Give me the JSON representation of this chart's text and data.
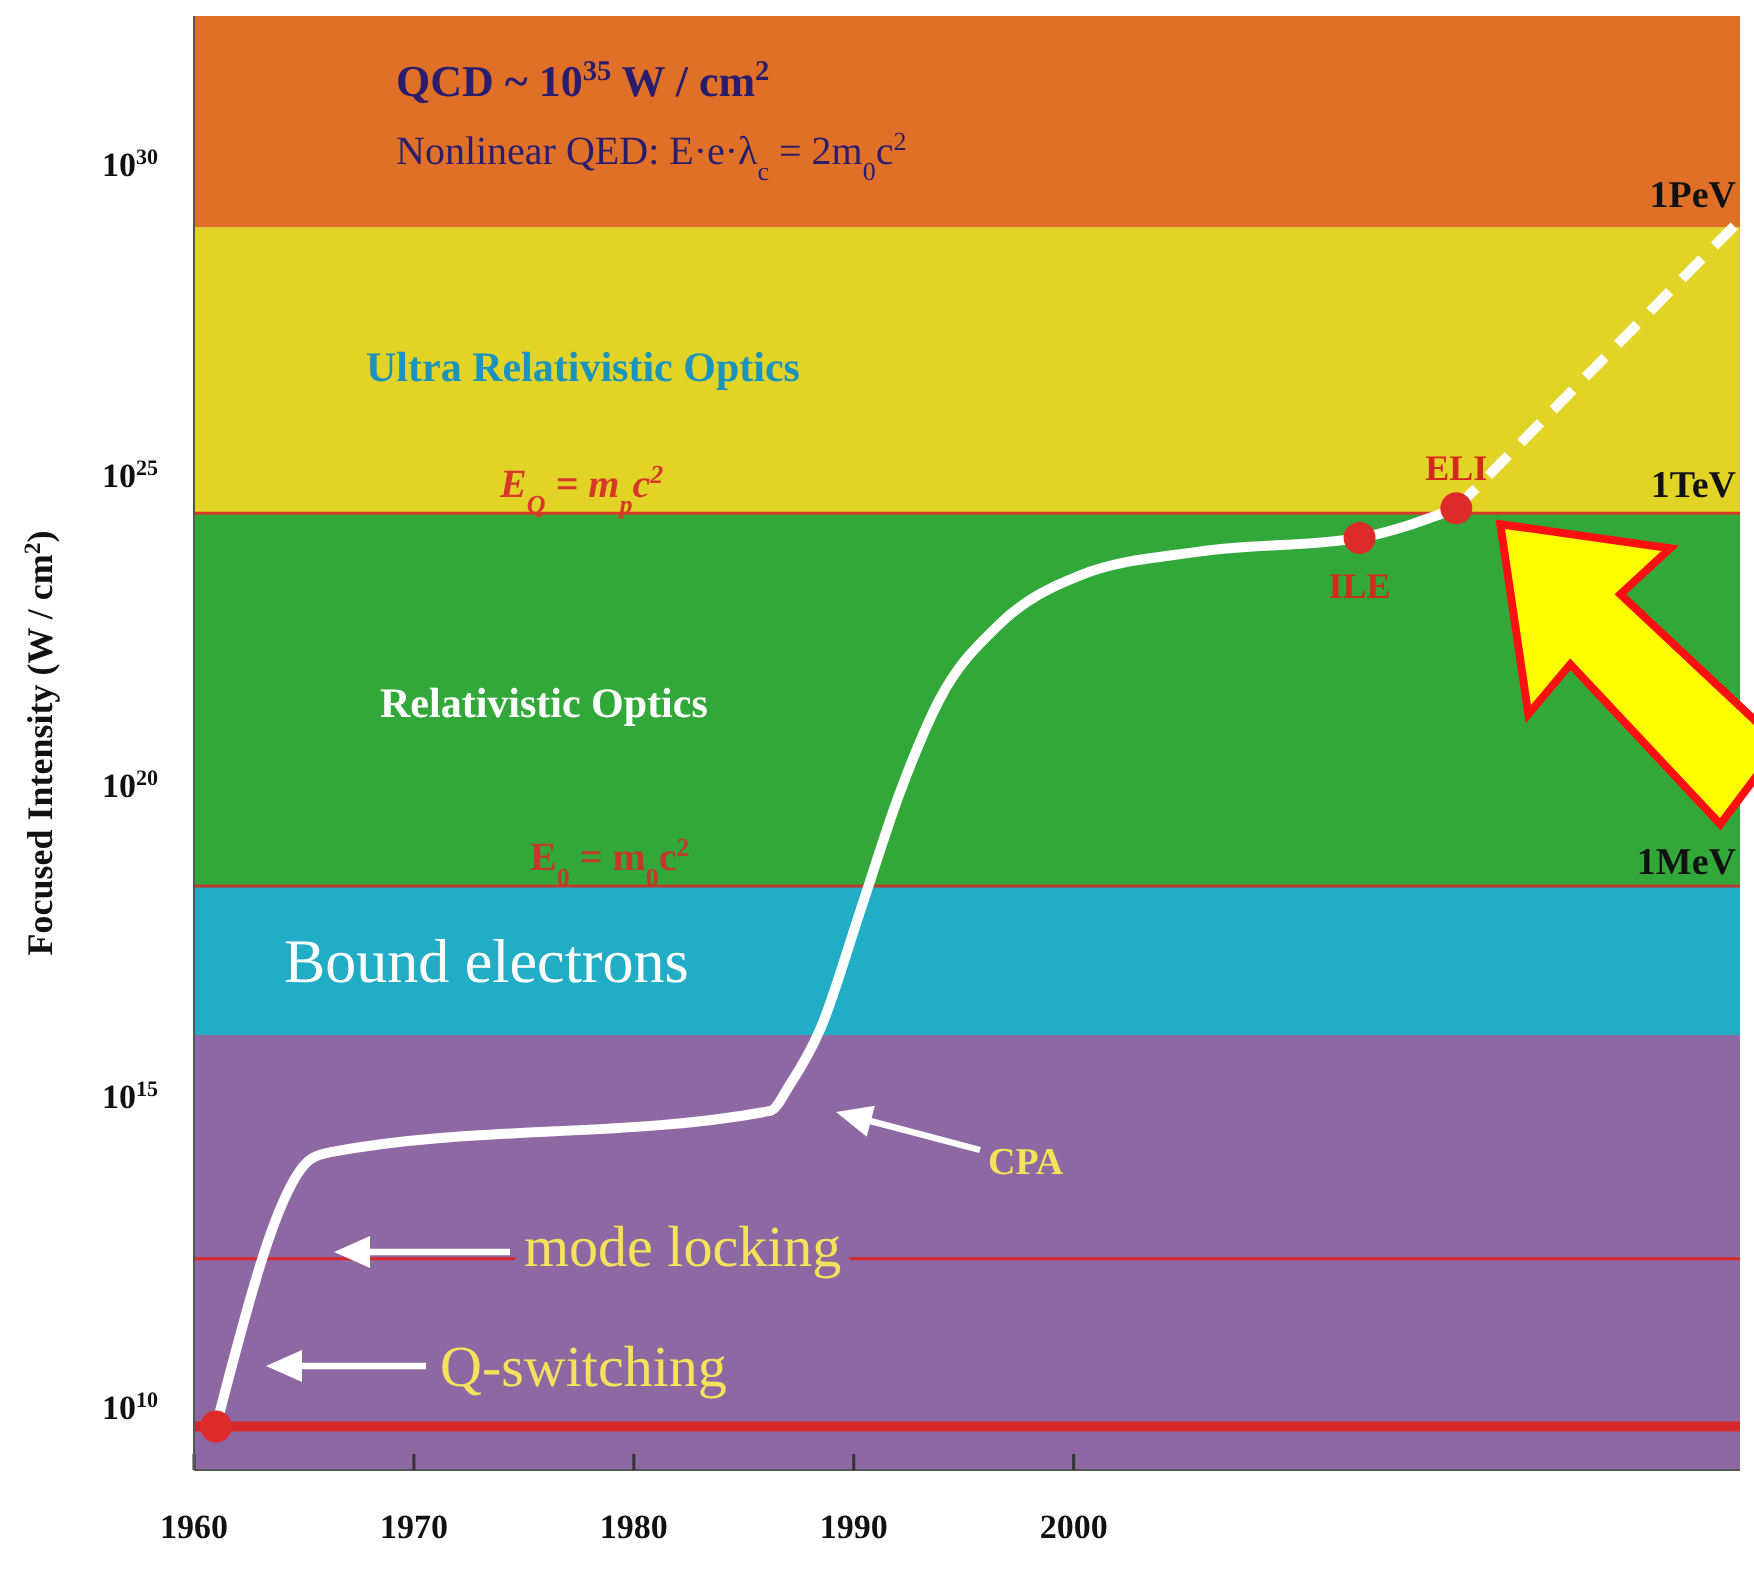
{
  "chart_data": {
    "type": "line",
    "ylabel": "Focused Intensity (W / cm$^{2}$)",
    "log": "y",
    "xlim": [
      1960,
      2030.3
    ],
    "xticks": [
      1960,
      1970,
      1980,
      1990,
      2000
    ],
    "ylim": [
      1000000000.0,
      2.5e+32
    ],
    "yticks": [
      {
        "value": 10000000000.0,
        "label": "10$^{10}$"
      },
      {
        "value": 1000000000000000.0,
        "label": "10$^{15}$"
      },
      {
        "value": 1e+20,
        "label": "10$^{20}$"
      },
      {
        "value": 1e+25,
        "label": "10$^{25}$"
      },
      {
        "value": 1e+30,
        "label": "10$^{30}$"
      }
    ],
    "grid": false,
    "series": [
      {
        "color": "#ffffff",
        "line_style": "solid",
        "marker": "none",
        "x": [
          1961,
          1965.3,
          1966.2,
          1986.2,
          1987.1,
          1988.5,
          1990.3,
          1992.1,
          1993.9,
          1996.6,
          2000.3,
          2005.7,
          2013,
          2017.4
        ],
        "values": [
          5000000000.0,
          100000000000000.0,
          130000000000000.0,
          600000000000000.0,
          1600000000000000.0,
          1.3e+16,
          1e+18,
          8e+19,
          2.5e+21,
          4e+22,
          2.5e+23,
          6e+23,
          1e+24,
          3e+24
        ]
      },
      {
        "color": "#ffffff",
        "line_style": "dashed",
        "marker": "none",
        "x": [
          2017.4,
          2030.3
        ],
        "values": [
          3e+24,
          1.3e+29
        ]
      },
      {
        "type": "scatter",
        "color": "#dd2a2a",
        "marker": "circle",
        "x": [
          1961,
          2013,
          2017.4
        ],
        "values": [
          5000000000.0,
          1e+24,
          3e+24
        ]
      }
    ],
    "bands": [
      {
        "axis": "y",
        "from": 1000000000.0,
        "to": 1e+16,
        "color": "#8e68a3"
      },
      {
        "axis": "y",
        "from": 1e+16,
        "to": 2.5e+18,
        "color": "#22adc6",
        "label": "Bound electrons"
      },
      {
        "axis": "y",
        "from": 2.5e+18,
        "to": 2.5e+24,
        "color": "#33a83a",
        "label": "Relativistic Optics"
      },
      {
        "axis": "y",
        "from": 2.5e+24,
        "to": 1e+29,
        "color": "#e2d427",
        "label": "Ultra Relativistic Optics"
      },
      {
        "axis": "y",
        "from": 1e+29,
        "to": 2.5e+32,
        "color": "#e07028",
        "label": "QCD ~ 10$^{35}$ W / cm$^{2}$"
      }
    ],
    "ref_lines": [
      {
        "axis": "y",
        "value": 5000000000.0,
        "color": "#d62a2a"
      },
      {
        "axis": "y",
        "value": 2500000000000.0,
        "color": "#d62a2a"
      },
      {
        "axis": "y",
        "value": 2.5e+18,
        "color": "#c0392b",
        "label": "E$_{0}$ = m$_{0}$c$^{2}$"
      },
      {
        "axis": "y",
        "value": 2.5e+24,
        "color": "#d8382a",
        "label": "E$_{Q}$ = m$_{p}$c$^{2}$"
      }
    ],
    "annotations": [
      "Nonlinear QED: E·e·λ$_{c}$ = 2m$_{0}$c$^{2}$",
      {
        "text": "1PeV",
        "x": 2030.3,
        "y": 1e+29
      },
      {
        "text": "1TeV",
        "x": 2030.3,
        "y": 2.5e+24
      },
      {
        "text": "1MeV",
        "x": 2030.3,
        "y": 2.5e+18
      },
      {
        "text": "ILE",
        "x": 2013,
        "y": 1e+24
      },
      {
        "text": "ELI",
        "x": 2017.4,
        "y": 3e+24
      },
      "Q-switching",
      "mode locking",
      "CPA"
    ]
  }
}
